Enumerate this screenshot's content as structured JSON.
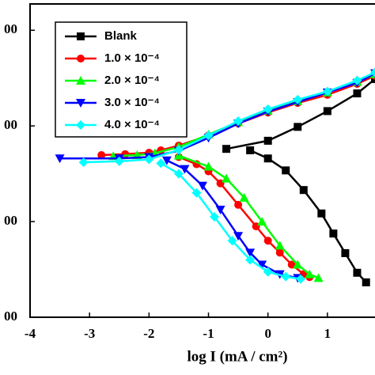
{
  "chart_data": {
    "type": "line",
    "x_label": "log I (mA / cm²)",
    "xlim": [
      -4,
      1.8
    ],
    "xticks": [
      -4,
      -3,
      -2,
      -1,
      0,
      1
    ],
    "ylim": [
      -800,
      -145
    ],
    "yticks": [
      {
        "value": -800,
        "label": "00"
      },
      {
        "value": -600,
        "label": "00"
      },
      {
        "value": -400,
        "label": "00"
      },
      {
        "value": -200,
        "label": "00"
      }
    ],
    "series": [
      {
        "name": "Blank",
        "color": "#000000",
        "marker": "square",
        "x": [
          -0.7,
          0,
          0.5,
          1,
          1.5,
          1.8,
          null,
          -0.3,
          0,
          0.3,
          0.6,
          0.9,
          1.1,
          1.3,
          1.5,
          1.65
        ],
        "values": [
          -448,
          -431,
          -402,
          -369,
          -332,
          -302,
          null,
          -451,
          -468,
          -493,
          -534,
          -583,
          -625,
          -666,
          -707,
          -727
        ]
      },
      {
        "name": "1.0 × 10⁻⁴",
        "color": "#ff0000",
        "marker": "circle",
        "x": [
          -2.8,
          -2.4,
          -2,
          -1.8,
          -1.5,
          -1,
          -0.5,
          0,
          0.5,
          1,
          1.5,
          1.8,
          null,
          -1.5,
          -1.2,
          -1,
          -0.8,
          -0.5,
          -0.2,
          0,
          0.2,
          0.4,
          0.6,
          0.7
        ],
        "values": [
          -461,
          -459,
          -456,
          -451,
          -441,
          -420,
          -395,
          -372,
          -352,
          -335,
          -312,
          -295,
          null,
          -465,
          -480,
          -495,
          -520,
          -565,
          -610,
          -640,
          -665,
          -690,
          -710,
          -716
        ]
      },
      {
        "name": "2.0 × 10⁻⁴",
        "color": "#00ff00",
        "marker": "triangle-up",
        "x": [
          -2.6,
          -2.2,
          -1.9,
          -1.5,
          -1,
          -0.5,
          0,
          0.5,
          1,
          1.5,
          1.8,
          null,
          -1.5,
          -1,
          -0.7,
          -0.4,
          -0.1,
          0.2,
          0.5,
          0.7,
          0.85
        ],
        "values": [
          -463,
          -461,
          -457,
          -444,
          -418,
          -392,
          -368,
          -348,
          -330,
          -308,
          -292,
          null,
          -462,
          -485,
          -510,
          -550,
          -600,
          -650,
          -690,
          -710,
          -718
        ]
      },
      {
        "name": "3.0 × 10⁻⁴",
        "color": "#0000ff",
        "marker": "triangle-down",
        "x": [
          -3.5,
          -2.5,
          -2,
          -1.5,
          -1,
          -0.5,
          0,
          0.5,
          1,
          1.5,
          1.8,
          null,
          -1.7,
          -1.4,
          -1.1,
          -0.8,
          -0.5,
          -0.3,
          -0.1,
          0.2,
          0.5
        ],
        "values": [
          -468,
          -468,
          -465,
          -452,
          -425,
          -395,
          -370,
          -350,
          -330,
          -310,
          -290,
          null,
          -472,
          -490,
          -525,
          -575,
          -630,
          -665,
          -690,
          -710,
          -718
        ]
      },
      {
        "name": "4.0 × 10⁻⁴",
        "color": "#00ffff",
        "marker": "diamond",
        "x": [
          -3.1,
          -2.5,
          -2,
          -1.5,
          -1,
          -0.5,
          0,
          0.5,
          1,
          1.5,
          1.8,
          null,
          -1.8,
          -1.5,
          -1.2,
          -0.9,
          -0.6,
          -0.3,
          0,
          0.3,
          0.55
        ],
        "values": [
          -476,
          -474,
          -470,
          -450,
          -420,
          -390,
          -365,
          -345,
          -328,
          -305,
          -288,
          null,
          -478,
          -500,
          -540,
          -590,
          -640,
          -680,
          -705,
          -715,
          -720
        ]
      }
    ]
  }
}
